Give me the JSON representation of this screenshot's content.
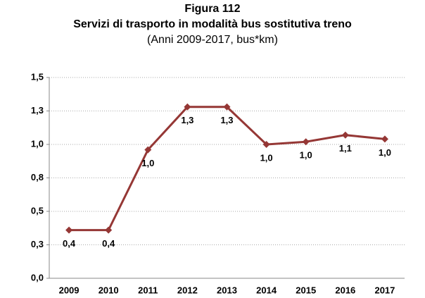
{
  "chart_data": {
    "type": "line",
    "title": "Figura 112",
    "subtitle": "Servizi di trasporto in modalità bus sostitutiva treno",
    "note": "(Anni 2009-2017, bus*km)",
    "categories": [
      "2009",
      "2010",
      "2011",
      "2012",
      "2013",
      "2014",
      "2015",
      "2016",
      "2017"
    ],
    "series": [
      {
        "name": "bus*km",
        "color": "#953735",
        "values": [
          0.36,
          0.36,
          0.96,
          1.28,
          1.28,
          1.0,
          1.02,
          1.07,
          1.04
        ],
        "value_labels": [
          "0,4",
          "0,4",
          "1,0",
          "1,3",
          "1,3",
          "1,0",
          "1,0",
          "1,1",
          "1,0"
        ]
      }
    ],
    "ylim": [
      0,
      1.5
    ],
    "yticks": [
      {
        "value": 0,
        "label": "0,0"
      },
      {
        "value": 0.25,
        "label": "0,3"
      },
      {
        "value": 0.5,
        "label": "0,5"
      },
      {
        "value": 0.75,
        "label": "0,8"
      },
      {
        "value": 1.0,
        "label": "1,0"
      },
      {
        "value": 1.25,
        "label": "1,3"
      },
      {
        "value": 1.5,
        "label": "1,5"
      }
    ],
    "grid": true
  }
}
